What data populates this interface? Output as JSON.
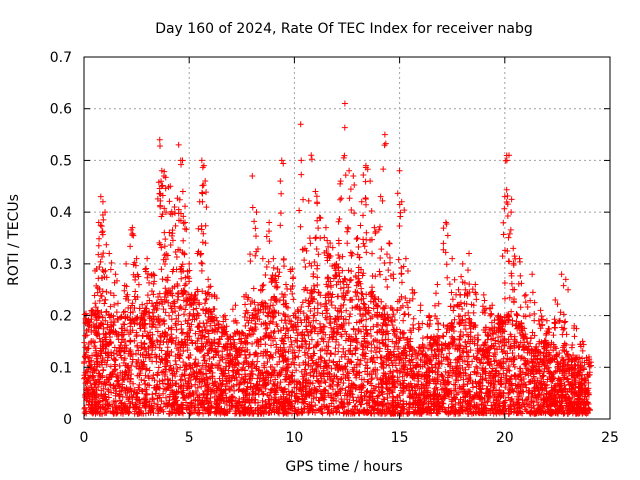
{
  "chart_data": {
    "type": "scatter",
    "title": "Day 160 of 2024, Rate Of TEC Index for receiver nabg",
    "xlabel": "GPS time / hours",
    "ylabel": "ROTI / TECUs",
    "xlim": [
      0,
      25
    ],
    "ylim": [
      0,
      0.7
    ],
    "xticks": [
      "0",
      "5",
      "10",
      "15",
      "20",
      "25"
    ],
    "yticks": [
      "0",
      "0.1",
      "0.2",
      "0.3",
      "0.4",
      "0.5",
      "0.6",
      "0.7"
    ],
    "grid": true,
    "marker": "plus",
    "color": "#ff0000",
    "points": [
      [
        0.2,
        0.18
      ],
      [
        0.4,
        0.21
      ],
      [
        0.6,
        0.29
      ],
      [
        0.7,
        0.38
      ],
      [
        0.8,
        0.43
      ],
      [
        0.9,
        0.42
      ],
      [
        1.0,
        0.4
      ],
      [
        1.2,
        0.32
      ],
      [
        1.5,
        0.28
      ],
      [
        2.0,
        0.3
      ],
      [
        2.3,
        0.37
      ],
      [
        2.5,
        0.31
      ],
      [
        3.0,
        0.31
      ],
      [
        3.3,
        0.28
      ],
      [
        3.6,
        0.54
      ],
      [
        3.7,
        0.48
      ],
      [
        3.8,
        0.47
      ],
      [
        3.9,
        0.4
      ],
      [
        4.1,
        0.45
      ],
      [
        4.3,
        0.41
      ],
      [
        4.5,
        0.53
      ],
      [
        4.6,
        0.5
      ],
      [
        4.7,
        0.44
      ],
      [
        4.8,
        0.38
      ],
      [
        5.0,
        0.3
      ],
      [
        5.3,
        0.24
      ],
      [
        5.5,
        0.42
      ],
      [
        5.6,
        0.5
      ],
      [
        5.7,
        0.49
      ],
      [
        5.9,
        0.27
      ],
      [
        6.2,
        0.24
      ],
      [
        6.7,
        0.2
      ],
      [
        7.2,
        0.22
      ],
      [
        7.7,
        0.24
      ],
      [
        8.0,
        0.47
      ],
      [
        8.2,
        0.4
      ],
      [
        8.5,
        0.31
      ],
      [
        8.8,
        0.38
      ],
      [
        9.0,
        0.31
      ],
      [
        9.2,
        0.29
      ],
      [
        9.4,
        0.5
      ],
      [
        9.6,
        0.26
      ],
      [
        9.9,
        0.29
      ],
      [
        10.3,
        0.57
      ],
      [
        10.5,
        0.33
      ],
      [
        10.8,
        0.51
      ],
      [
        11.0,
        0.44
      ],
      [
        11.2,
        0.39
      ],
      [
        11.5,
        0.37
      ],
      [
        11.7,
        0.34
      ],
      [
        12.0,
        0.3
      ],
      [
        12.2,
        0.46
      ],
      [
        12.4,
        0.61
      ],
      [
        12.6,
        0.48
      ],
      [
        12.8,
        0.47
      ],
      [
        13.0,
        0.35
      ],
      [
        13.2,
        0.42
      ],
      [
        13.4,
        0.49
      ],
      [
        13.6,
        0.46
      ],
      [
        13.8,
        0.37
      ],
      [
        14.1,
        0.43
      ],
      [
        14.3,
        0.55
      ],
      [
        14.5,
        0.34
      ],
      [
        14.7,
        0.28
      ],
      [
        15.0,
        0.48
      ],
      [
        15.1,
        0.42
      ],
      [
        15.3,
        0.31
      ],
      [
        15.6,
        0.25
      ],
      [
        16.0,
        0.22
      ],
      [
        16.4,
        0.2
      ],
      [
        16.8,
        0.26
      ],
      [
        17.2,
        0.38
      ],
      [
        17.5,
        0.31
      ],
      [
        17.8,
        0.25
      ],
      [
        18.0,
        0.3
      ],
      [
        18.3,
        0.32
      ],
      [
        18.6,
        0.26
      ],
      [
        19.0,
        0.24
      ],
      [
        19.4,
        0.22
      ],
      [
        19.7,
        0.2
      ],
      [
        20.0,
        0.43
      ],
      [
        20.1,
        0.5
      ],
      [
        20.2,
        0.51
      ],
      [
        20.3,
        0.4
      ],
      [
        20.4,
        0.33
      ],
      [
        20.7,
        0.31
      ],
      [
        21.0,
        0.24
      ],
      [
        21.3,
        0.28
      ],
      [
        21.7,
        0.21
      ],
      [
        22.0,
        0.19
      ],
      [
        22.4,
        0.23
      ],
      [
        22.7,
        0.28
      ],
      [
        22.9,
        0.27
      ],
      [
        23.3,
        0.18
      ],
      [
        23.7,
        0.15
      ],
      [
        24.0,
        0.12
      ]
    ],
    "dense_band": {
      "segments": [
        [
          0.0,
          0.2
        ],
        [
          0.5,
          0.19
        ],
        [
          1.0,
          0.2
        ],
        [
          1.5,
          0.19
        ],
        [
          2.0,
          0.2
        ],
        [
          2.5,
          0.23
        ],
        [
          3.0,
          0.22
        ],
        [
          3.5,
          0.24
        ],
        [
          4.0,
          0.24
        ],
        [
          4.5,
          0.25
        ],
        [
          5.0,
          0.23
        ],
        [
          5.5,
          0.22
        ],
        [
          6.0,
          0.2
        ],
        [
          6.5,
          0.17
        ],
        [
          7.0,
          0.15
        ],
        [
          7.5,
          0.17
        ],
        [
          8.0,
          0.2
        ],
        [
          8.5,
          0.22
        ],
        [
          9.0,
          0.22
        ],
        [
          9.5,
          0.19
        ],
        [
          10.0,
          0.2
        ],
        [
          10.5,
          0.22
        ],
        [
          11.0,
          0.25
        ],
        [
          11.5,
          0.26
        ],
        [
          12.0,
          0.27
        ],
        [
          12.5,
          0.26
        ],
        [
          13.0,
          0.26
        ],
        [
          13.5,
          0.24
        ],
        [
          14.0,
          0.23
        ],
        [
          14.5,
          0.2
        ],
        [
          15.0,
          0.17
        ],
        [
          15.5,
          0.14
        ],
        [
          16.0,
          0.13
        ],
        [
          16.5,
          0.15
        ],
        [
          17.0,
          0.16
        ],
        [
          17.5,
          0.18
        ],
        [
          18.0,
          0.19
        ],
        [
          18.5,
          0.18
        ],
        [
          19.0,
          0.17
        ],
        [
          19.5,
          0.16
        ],
        [
          20.0,
          0.19
        ],
        [
          20.5,
          0.2
        ],
        [
          21.0,
          0.16
        ],
        [
          21.5,
          0.15
        ],
        [
          22.0,
          0.14
        ],
        [
          22.5,
          0.14
        ],
        [
          23.0,
          0.12
        ],
        [
          23.5,
          0.11
        ],
        [
          24.0,
          0.1
        ]
      ]
    }
  }
}
